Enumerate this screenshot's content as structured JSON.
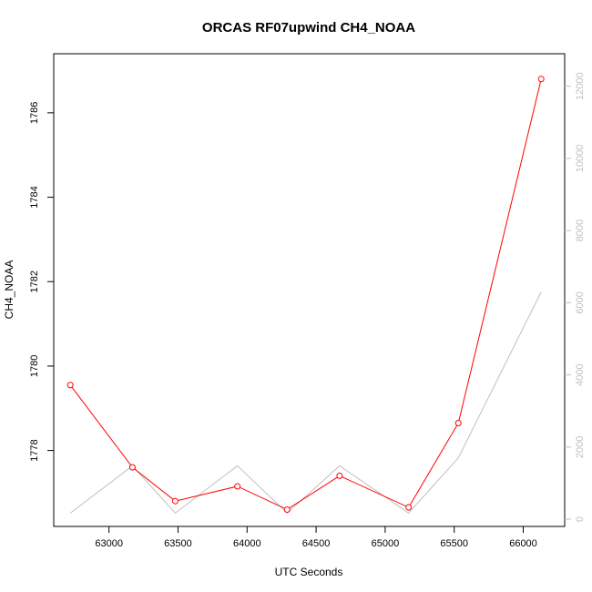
{
  "chart_data": {
    "type": "line",
    "title": "ORCAS RF07upwind CH4_NOAA",
    "xlabel": "UTC Seconds",
    "ylabel": "CH4_NOAA",
    "xlim": [
      62600,
      66300
    ],
    "ylim": [
      1776.2,
      1787.4
    ],
    "y2lim": [
      -200,
      12900
    ],
    "x_ticks": [
      63000,
      63500,
      64000,
      64500,
      65000,
      65500,
      66000
    ],
    "y_ticks": [
      1778,
      1780,
      1782,
      1784,
      1786
    ],
    "y2_ticks": [
      0,
      2000,
      4000,
      6000,
      8000,
      10000,
      12000
    ],
    "grid": false,
    "series": [
      {
        "axis": "left",
        "color": "#ff0000",
        "style": "line-with-open-circles",
        "x": [
          62720,
          63170,
          63480,
          63930,
          64290,
          64670,
          65170,
          65530,
          66130
        ],
        "y": [
          1779.55,
          1777.6,
          1776.8,
          1777.15,
          1776.6,
          1777.4,
          1776.65,
          1778.65,
          1786.8
        ]
      },
      {
        "axis": "right",
        "color": "#c0c0c0",
        "style": "line",
        "x": [
          62720,
          63170,
          63480,
          63930,
          64290,
          64670,
          65170,
          65530,
          66130
        ],
        "y": [
          170,
          1480,
          170,
          1480,
          170,
          1480,
          170,
          1700,
          6300
        ]
      }
    ]
  }
}
